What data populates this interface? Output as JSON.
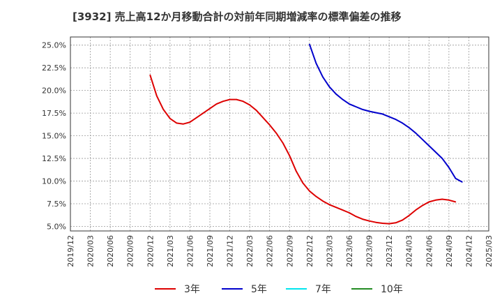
{
  "chart_data": {
    "type": "line",
    "title": "[3932]  売上高12か月移動合計の対前年同期増減率の標準偏差の推移",
    "xlabel": "",
    "ylabel": "",
    "x_ticks": [
      "2019/12",
      "2020/03",
      "2020/06",
      "2020/09",
      "2020/12",
      "2021/03",
      "2021/06",
      "2021/09",
      "2021/12",
      "2022/03",
      "2022/06",
      "2022/09",
      "2022/12",
      "2023/03",
      "2023/06",
      "2023/09",
      "2023/12",
      "2024/03",
      "2024/06",
      "2024/09",
      "2024/12",
      "2025/03"
    ],
    "y_ticks": [
      "5.0%",
      "7.5%",
      "10.0%",
      "12.5%",
      "15.0%",
      "17.5%",
      "20.0%",
      "22.5%",
      "25.0%"
    ],
    "y_tick_values": [
      5.0,
      7.5,
      10.0,
      12.5,
      15.0,
      17.5,
      20.0,
      22.5,
      25.0
    ],
    "ylim": [
      4.5,
      25.9
    ],
    "grid": true,
    "legend_position": "bottom",
    "series": [
      {
        "name": "3年",
        "color": "#dd0000",
        "points": [
          [
            "2020/12",
            21.7
          ],
          [
            "2021/01",
            19.4
          ],
          [
            "2021/02",
            17.9
          ],
          [
            "2021/03",
            16.9
          ],
          [
            "2021/04",
            16.4
          ],
          [
            "2021/05",
            16.3
          ],
          [
            "2021/06",
            16.5
          ],
          [
            "2021/07",
            17.0
          ],
          [
            "2021/08",
            17.5
          ],
          [
            "2021/09",
            18.0
          ],
          [
            "2021/10",
            18.5
          ],
          [
            "2021/11",
            18.8
          ],
          [
            "2021/12",
            19.0
          ],
          [
            "2022/01",
            19.0
          ],
          [
            "2022/02",
            18.8
          ],
          [
            "2022/03",
            18.4
          ],
          [
            "2022/04",
            17.8
          ],
          [
            "2022/05",
            17.0
          ],
          [
            "2022/06",
            16.2
          ],
          [
            "2022/07",
            15.3
          ],
          [
            "2022/08",
            14.2
          ],
          [
            "2022/09",
            12.8
          ],
          [
            "2022/10",
            11.1
          ],
          [
            "2022/11",
            9.8
          ],
          [
            "2022/12",
            8.9
          ],
          [
            "2023/01",
            8.3
          ],
          [
            "2023/02",
            7.8
          ],
          [
            "2023/03",
            7.4
          ],
          [
            "2023/04",
            7.1
          ],
          [
            "2023/05",
            6.8
          ],
          [
            "2023/06",
            6.5
          ],
          [
            "2023/07",
            6.1
          ],
          [
            "2023/08",
            5.8
          ],
          [
            "2023/09",
            5.6
          ],
          [
            "2023/10",
            5.45
          ],
          [
            "2023/11",
            5.35
          ],
          [
            "2023/12",
            5.3
          ],
          [
            "2024/01",
            5.4
          ],
          [
            "2024/02",
            5.7
          ],
          [
            "2024/03",
            6.2
          ],
          [
            "2024/04",
            6.8
          ],
          [
            "2024/05",
            7.3
          ],
          [
            "2024/06",
            7.7
          ],
          [
            "2024/07",
            7.9
          ],
          [
            "2024/08",
            8.0
          ],
          [
            "2024/09",
            7.9
          ],
          [
            "2024/10",
            7.7
          ]
        ]
      },
      {
        "name": "5年",
        "color": "#0000cc",
        "points": [
          [
            "2022/12",
            25.1
          ],
          [
            "2023/01",
            23.0
          ],
          [
            "2023/02",
            21.5
          ],
          [
            "2023/03",
            20.4
          ],
          [
            "2023/04",
            19.6
          ],
          [
            "2023/05",
            19.0
          ],
          [
            "2023/06",
            18.5
          ],
          [
            "2023/07",
            18.2
          ],
          [
            "2023/08",
            17.9
          ],
          [
            "2023/09",
            17.7
          ],
          [
            "2023/10",
            17.55
          ],
          [
            "2023/11",
            17.4
          ],
          [
            "2023/12",
            17.1
          ],
          [
            "2024/01",
            16.8
          ],
          [
            "2024/02",
            16.4
          ],
          [
            "2024/03",
            15.9
          ],
          [
            "2024/04",
            15.3
          ],
          [
            "2024/05",
            14.6
          ],
          [
            "2024/06",
            13.9
          ],
          [
            "2024/07",
            13.2
          ],
          [
            "2024/08",
            12.5
          ],
          [
            "2024/09",
            11.5
          ],
          [
            "2024/10",
            10.3
          ],
          [
            "2024/11",
            9.9
          ]
        ]
      },
      {
        "name": "7年",
        "color": "#00e5ee",
        "points": []
      },
      {
        "name": "10年",
        "color": "#228b22",
        "points": []
      }
    ]
  }
}
